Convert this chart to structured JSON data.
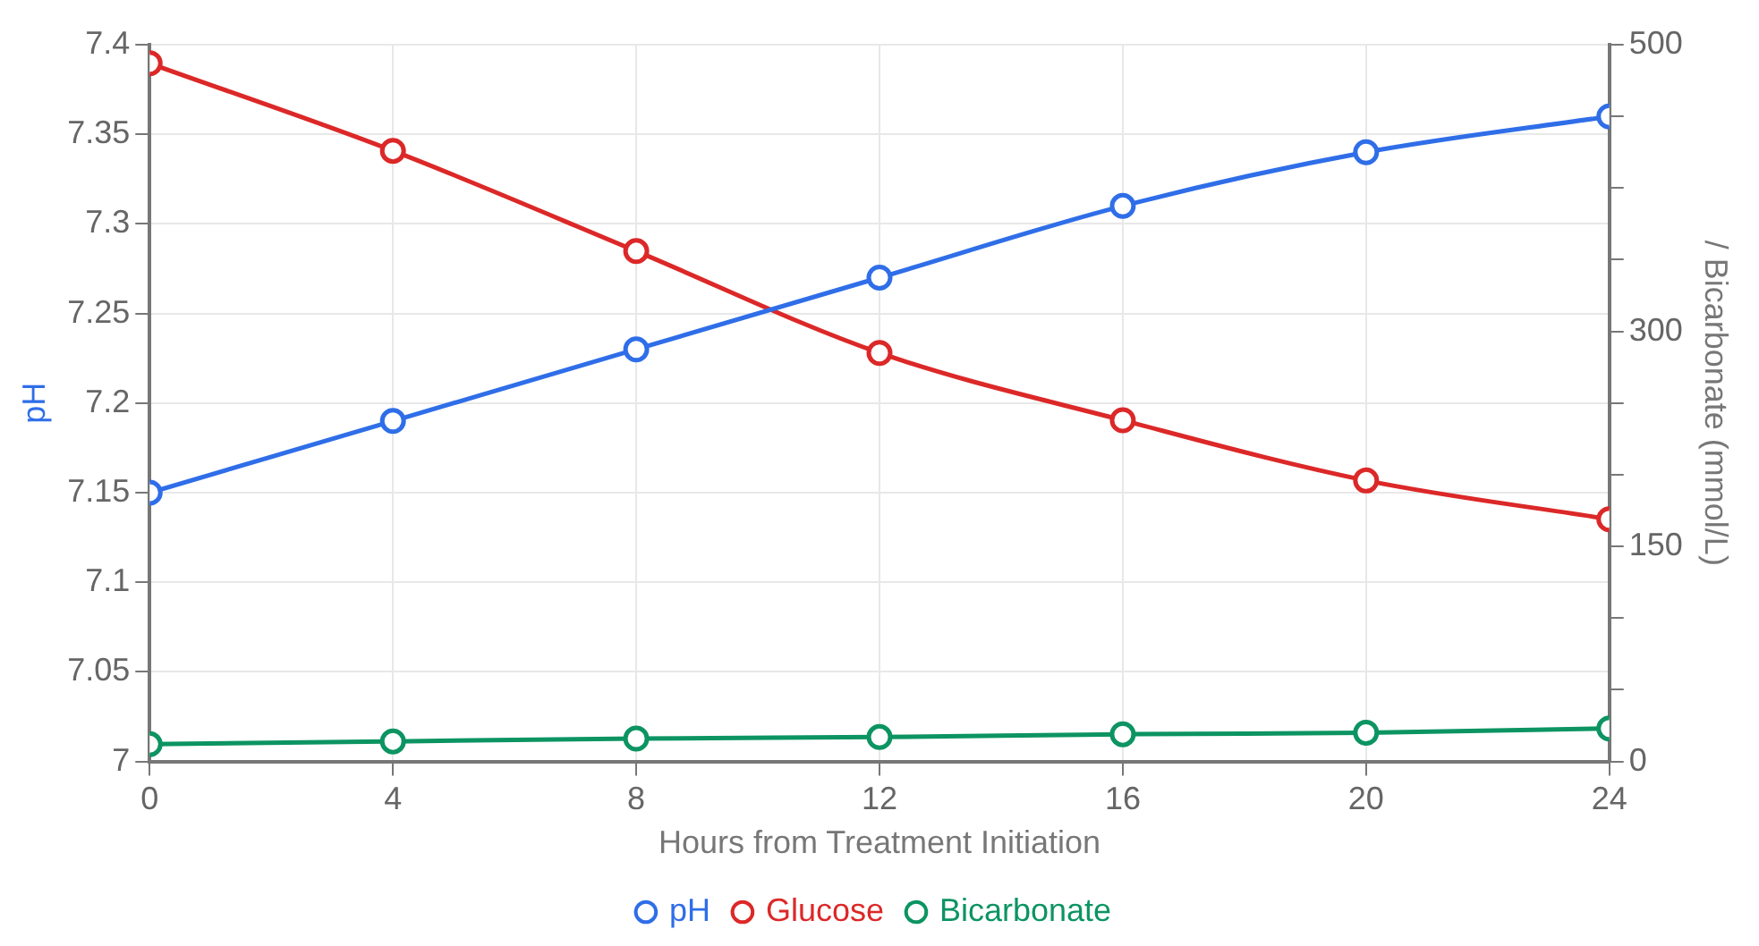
{
  "chart_data": {
    "type": "line",
    "xlabel": "Hours from Treatment Initiation",
    "ylabel": "pH",
    "y2label": "/ Bicarbonate (mmol/L)",
    "x": [
      0,
      4,
      8,
      12,
      16,
      20,
      24
    ],
    "xlim": [
      0,
      24
    ],
    "xticks": [
      0,
      4,
      8,
      12,
      16,
      20,
      24
    ],
    "ylim": [
      7,
      7.4
    ],
    "yticks": [
      7,
      7.05,
      7.1,
      7.15,
      7.2,
      7.25,
      7.3,
      7.35,
      7.4
    ],
    "y2lim": [
      0,
      500
    ],
    "y2ticks": [
      0,
      {
        "value": 50,
        "label": null
      },
      {
        "value": 100,
        "label": null
      },
      150,
      {
        "value": 200,
        "label": null
      },
      {
        "value": 250,
        "label": null
      },
      300,
      {
        "value": 350,
        "label": null
      },
      {
        "value": 400,
        "label": null
      },
      {
        "value": 450,
        "label": null
      },
      500
    ],
    "series": [
      {
        "name": "pH",
        "color": "#2f6ee8",
        "values": [
          7.15,
          7.19,
          7.23,
          7.27,
          7.31,
          7.34,
          7.36
        ]
      },
      {
        "name": "Glucose",
        "color": "#dc2828",
        "axis": "y2",
        "values": [
          487,
          426,
          356,
          285,
          238,
          196,
          169
        ]
      },
      {
        "name": "Bicarbonate",
        "color": "#0c9462",
        "axis": "y2",
        "values": [
          12,
          14,
          16,
          17,
          19,
          20,
          23
        ]
      }
    ],
    "grid": true,
    "legend": "bottom",
    "marker": "circle",
    "line_style": "solid"
  }
}
